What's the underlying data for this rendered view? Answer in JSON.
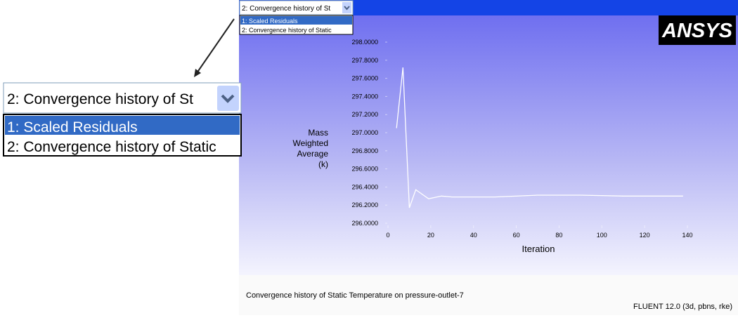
{
  "dropdown": {
    "selected": "2: Convergence history of St",
    "options": [
      "1: Scaled Residuals",
      "2: Convergence history of Static"
    ]
  },
  "zoom": {
    "selected": "2: Convergence history of St",
    "options": [
      "1: Scaled Residuals",
      "2: Convergence history of Static"
    ]
  },
  "logo": "ANSYS",
  "chart": {
    "type": "line",
    "ylabel": [
      "Mass",
      "Weighted",
      "Average",
      "(k)"
    ],
    "xlabel": "Iteration",
    "x": [
      4,
      7,
      10,
      13,
      16,
      19,
      25,
      30,
      50,
      70,
      90,
      110,
      138
    ],
    "values": [
      297.05,
      297.72,
      296.17,
      296.37,
      296.32,
      296.27,
      296.3,
      296.29,
      296.29,
      296.31,
      296.31,
      296.3,
      296.3
    ],
    "color": "#ffffff",
    "xlim": [
      0,
      140
    ],
    "xticks": [
      0,
      20,
      40,
      60,
      80,
      100,
      120,
      140
    ],
    "ylim": [
      296,
      298
    ],
    "yticks": [
      {
        "value": 296,
        "label": "296.0000"
      },
      {
        "value": 296.2,
        "label": "296.2000"
      },
      {
        "value": 296.4,
        "label": "296.4000"
      },
      {
        "value": 296.6,
        "label": "296.6000"
      },
      {
        "value": 296.8,
        "label": "296.8000"
      },
      {
        "value": 297,
        "label": "297.0000"
      },
      {
        "value": 297.2,
        "label": "297.2000"
      },
      {
        "value": 297.4,
        "label": "297.4000"
      },
      {
        "value": 297.6,
        "label": "297.6000"
      },
      {
        "value": 297.8,
        "label": "297.8000"
      },
      {
        "value": 298,
        "label": "298.0000"
      }
    ]
  },
  "footer": {
    "caption": "Convergence history of Static Temperature on pressure-outlet-7",
    "version": "FLUENT 12.0 (3d, pbns, rke)"
  }
}
